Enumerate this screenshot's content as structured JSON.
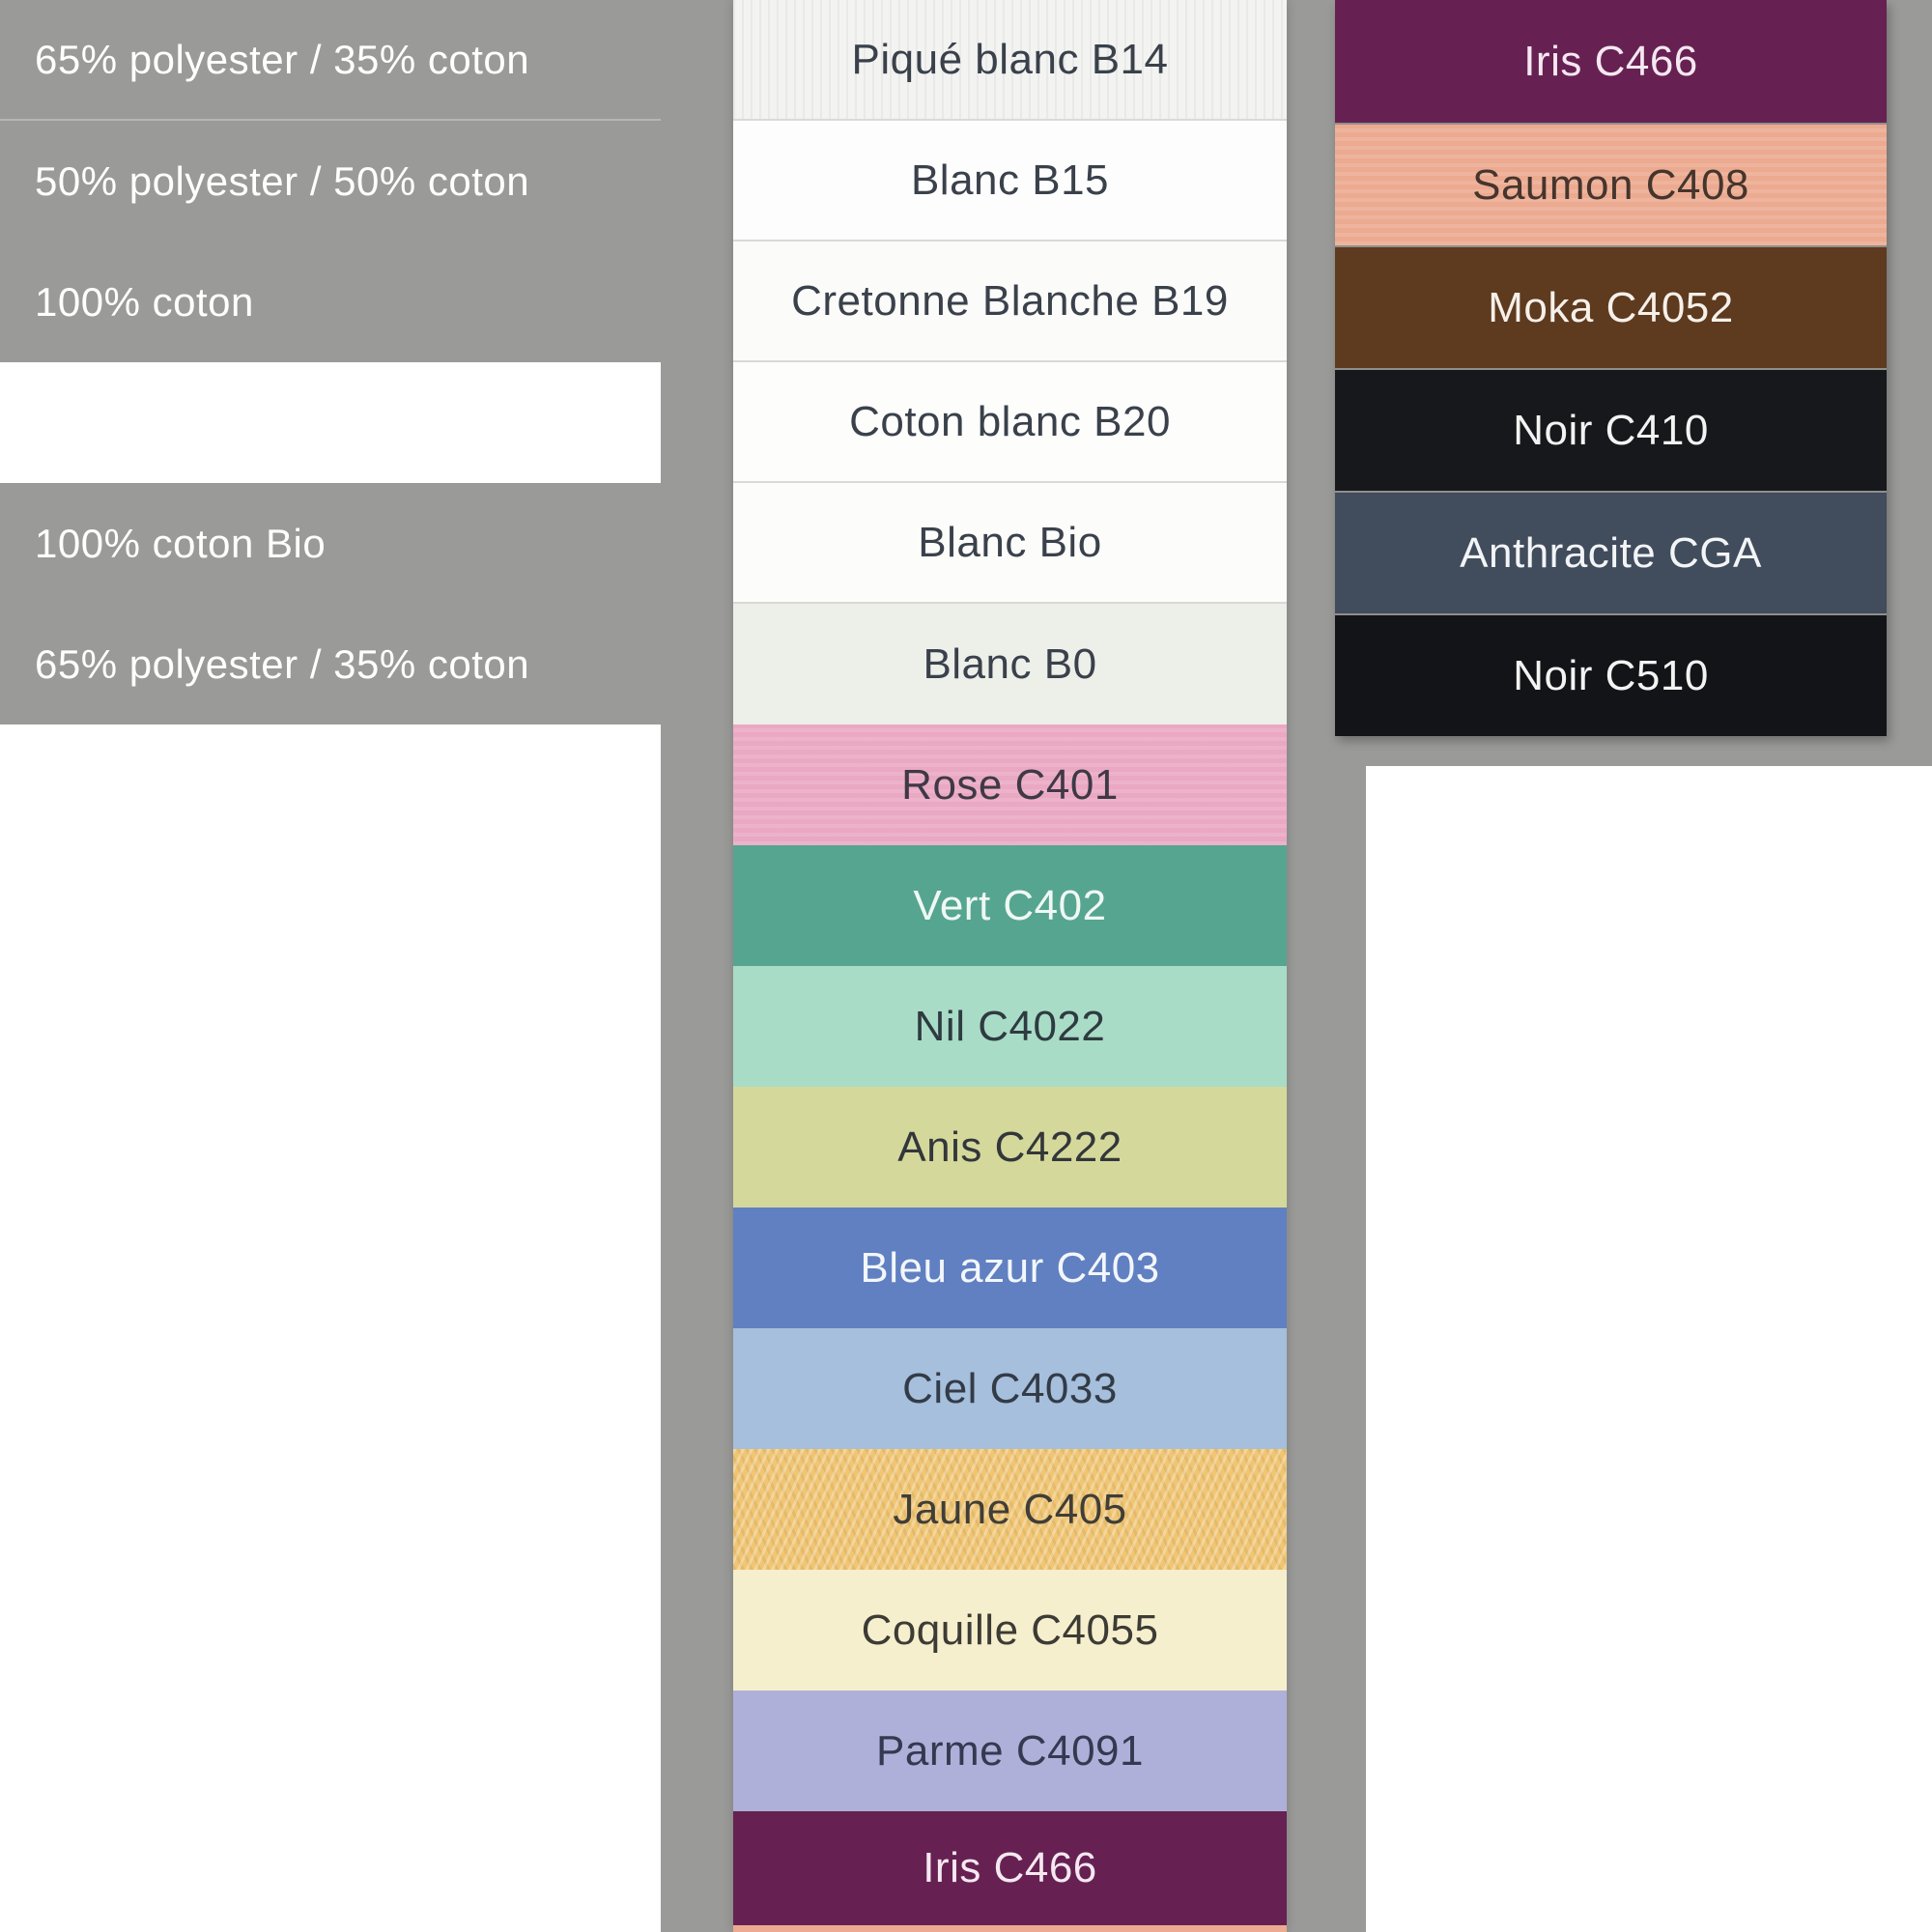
{
  "page": {
    "background_color": "#9a9a98",
    "separator_color": "#b6b6b4"
  },
  "composition_table": {
    "text_color": "#ffffff",
    "rows": [
      {
        "label": "65% polyester / 35% coton"
      },
      {
        "label": "50% polyester / 50% coton"
      },
      {
        "label": "100% coton"
      },
      {
        "label": ""
      },
      {
        "label": "100% coton Bio"
      },
      {
        "label": "65% polyester / 35% coton"
      }
    ]
  },
  "middle_swatches": [
    {
      "name": "Piqué blanc B14",
      "color": "#f3f3f1",
      "text_color": "#3a414b"
    },
    {
      "name": "Blanc B15",
      "color": "#fdfdfd",
      "text_color": "#3a414b"
    },
    {
      "name": "Cretonne Blanche B19",
      "color": "#fbfbf9",
      "text_color": "#3a414b"
    },
    {
      "name": "Coton blanc B20",
      "color": "#fdfdfc",
      "text_color": "#3a414b"
    },
    {
      "name": "Blanc Bio",
      "color": "#fcfcfa",
      "text_color": "#3a414b"
    },
    {
      "name": "Blanc B0",
      "color": "#edefe9",
      "text_color": "#3a414b"
    },
    {
      "name": "Rose C401",
      "color": "#eaa8c3",
      "text_color": "#3f3946"
    },
    {
      "name": "Vert C402",
      "color": "#56a591",
      "text_color": "#f0f8f4"
    },
    {
      "name": "Nil C4022",
      "color": "#a9dcc7",
      "text_color": "#2e3b40"
    },
    {
      "name": "Anis C4222",
      "color": "#d5d89b",
      "text_color": "#33373a"
    },
    {
      "name": "Bleu azur C403",
      "color": "#6080c1",
      "text_color": "#f3f6fb"
    },
    {
      "name": "Ciel C4033",
      "color": "#a5bfdc",
      "text_color": "#333b47"
    },
    {
      "name": "Jaune C405",
      "color": "#f1c673",
      "text_color": "#403e38"
    },
    {
      "name": "Coquille C4055",
      "color": "#f6efcd",
      "text_color": "#3c3b35"
    },
    {
      "name": "Parme C4091",
      "color": "#aeb0d9",
      "text_color": "#353950"
    },
    {
      "name": "Iris C466",
      "color": "#662152",
      "text_color": "#f5e8f0"
    }
  ],
  "middle_next_partial_swatch": {
    "color": "#ecaa90"
  },
  "right_swatches": [
    {
      "name": "Iris C466",
      "color": "#662152",
      "text_color": "#f5e8f0"
    },
    {
      "name": "Saumon C408",
      "color": "#ecaa90",
      "text_color": "#45352d"
    },
    {
      "name": "Moka C4052",
      "color": "#5e3a1e",
      "text_color": "#f6f0ea"
    },
    {
      "name": "Noir C410",
      "color": "#17181b",
      "text_color": "#f3f3f3"
    },
    {
      "name": "Anthracite CGA",
      "color": "#414c5c",
      "text_color": "#f3f4f6"
    },
    {
      "name": "Noir C510",
      "color": "#131417",
      "text_color": "#f3f3f3"
    }
  ]
}
